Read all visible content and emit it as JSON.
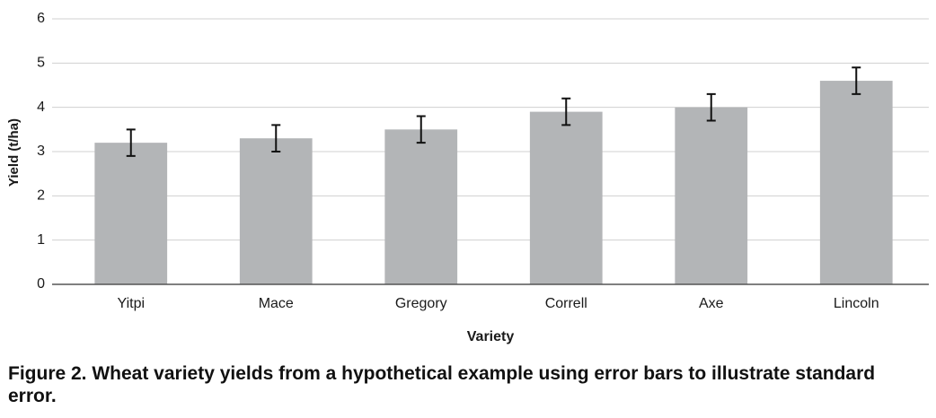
{
  "chart_data": {
    "type": "bar",
    "x_label": "Variety",
    "y_label": "Yield (t/ha)",
    "caption": "Figure 2. Wheat variety yields from a hypothetical example using error bars to illustrate standard error.",
    "categories": [
      "Yitpi",
      "Mace",
      "Gregory",
      "Correll",
      "Axe",
      "Lincoln"
    ],
    "values": [
      3.2,
      3.3,
      3.5,
      3.9,
      4.0,
      4.6
    ],
    "errors": [
      0.3,
      0.3,
      0.3,
      0.3,
      0.3,
      0.3
    ],
    "color": "#b3b5b7",
    "ylim": [
      0,
      6
    ],
    "yticks": [
      0,
      1,
      2,
      3,
      4,
      5,
      6
    ],
    "grid": true
  }
}
